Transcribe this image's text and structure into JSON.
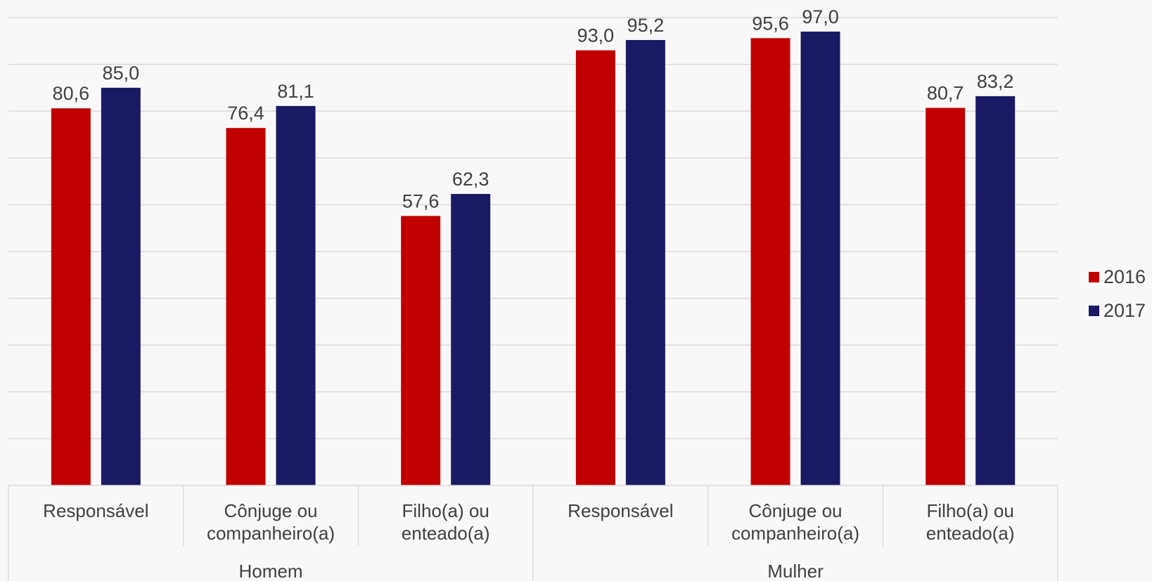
{
  "chart_data": {
    "type": "bar",
    "title": "",
    "xlabel": "",
    "ylabel": "",
    "ylim": [
      0,
      100
    ],
    "grid": true,
    "legend_position": "right",
    "groups": [
      {
        "label": "Homem",
        "categories": [
          "Responsável",
          "Cônjuge ou companheiro(a)",
          "Filho(a) ou enteado(a)"
        ]
      },
      {
        "label": "Mulher",
        "categories": [
          "Responsável",
          "Cônjuge ou companheiro(a)",
          "Filho(a) ou enteado(a)"
        ]
      }
    ],
    "category_lines": [
      [
        "Responsável"
      ],
      [
        "Cônjuge ou",
        "companheiro(a)"
      ],
      [
        "Filho(a) ou",
        "enteado(a)"
      ],
      [
        "Responsável"
      ],
      [
        "Cônjuge ou",
        "companheiro(a)"
      ],
      [
        "Filho(a) ou",
        "enteado(a)"
      ]
    ],
    "series": [
      {
        "name": "2016",
        "color": "#c00000",
        "values": [
          80.6,
          76.4,
          57.6,
          93.0,
          95.6,
          80.7
        ],
        "labels": [
          "80,6",
          "76,4",
          "57,6",
          "93,0",
          "95,6",
          "80,7"
        ]
      },
      {
        "name": "2017",
        "color": "#1a1a64",
        "values": [
          85.0,
          81.1,
          62.3,
          95.2,
          97.0,
          83.2
        ],
        "labels": [
          "85,0",
          "81,1",
          "62,3",
          "95,2",
          "97,0",
          "83,2"
        ]
      }
    ]
  }
}
